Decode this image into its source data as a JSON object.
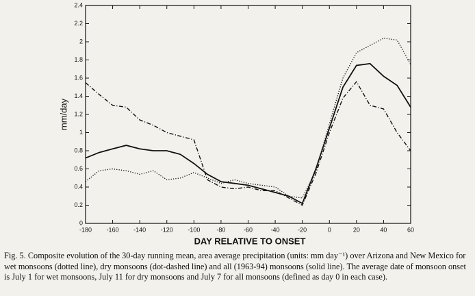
{
  "chart_data": {
    "type": "line",
    "xlabel": "DAY RELATIVE TO ONSET",
    "ylabel": "mm/day",
    "caption": "Fig. 5. Composite evolution of the 30-day running mean, area average precipitation (units: mm day⁻¹) over Arizona and New Mexico for wet monsoons (dotted line), dry monsoons (dot-dashed line) and all (1963-94) monsoons (solid line). The average date of monsoon onset is July 1 for wet monsoons, July 11 for dry monsoons and July 7 for all monsoons (defined as day 0 in each case).",
    "x": [
      -180,
      -170,
      -160,
      -150,
      -140,
      -130,
      -120,
      -110,
      -100,
      -90,
      -80,
      -70,
      -60,
      -50,
      -40,
      -30,
      -20,
      -10,
      0,
      10,
      20,
      30,
      40,
      50,
      60
    ],
    "series": [
      {
        "color": "#111111",
        "line_style": "solid",
        "values": [
          0.72,
          0.78,
          0.82,
          0.86,
          0.82,
          0.8,
          0.8,
          0.76,
          0.66,
          0.54,
          0.46,
          0.44,
          0.42,
          0.38,
          0.34,
          0.3,
          0.22,
          0.6,
          1.05,
          1.5,
          1.74,
          1.76,
          1.62,
          1.52,
          1.28
        ]
      },
      {
        "color": "#111111",
        "line_style": "dotted",
        "values": [
          0.46,
          0.58,
          0.6,
          0.58,
          0.54,
          0.58,
          0.48,
          0.5,
          0.56,
          0.5,
          0.44,
          0.48,
          0.44,
          0.42,
          0.4,
          0.3,
          0.28,
          0.58,
          1.1,
          1.6,
          1.88,
          1.96,
          2.04,
          2.02,
          1.75
        ]
      },
      {
        "color": "#111111",
        "line_style": "dot-dashed",
        "values": [
          1.55,
          1.42,
          1.3,
          1.28,
          1.14,
          1.08,
          1.0,
          0.96,
          0.92,
          0.48,
          0.4,
          0.38,
          0.4,
          0.36,
          0.36,
          0.28,
          0.2,
          0.55,
          1.0,
          1.38,
          1.56,
          1.3,
          1.26,
          1.0,
          0.8
        ]
      }
    ],
    "xlim": [
      -180,
      60
    ],
    "xticks": [
      -180,
      -160,
      -140,
      -120,
      -100,
      -80,
      -60,
      -40,
      -20,
      0,
      20,
      40,
      60
    ],
    "ylim": [
      0,
      2.4
    ],
    "yticks": [
      0,
      0.2,
      0.4,
      0.6,
      0.8,
      1,
      1.2,
      1.4,
      1.6,
      1.8,
      2,
      2.2,
      2.4
    ],
    "grid": false
  }
}
